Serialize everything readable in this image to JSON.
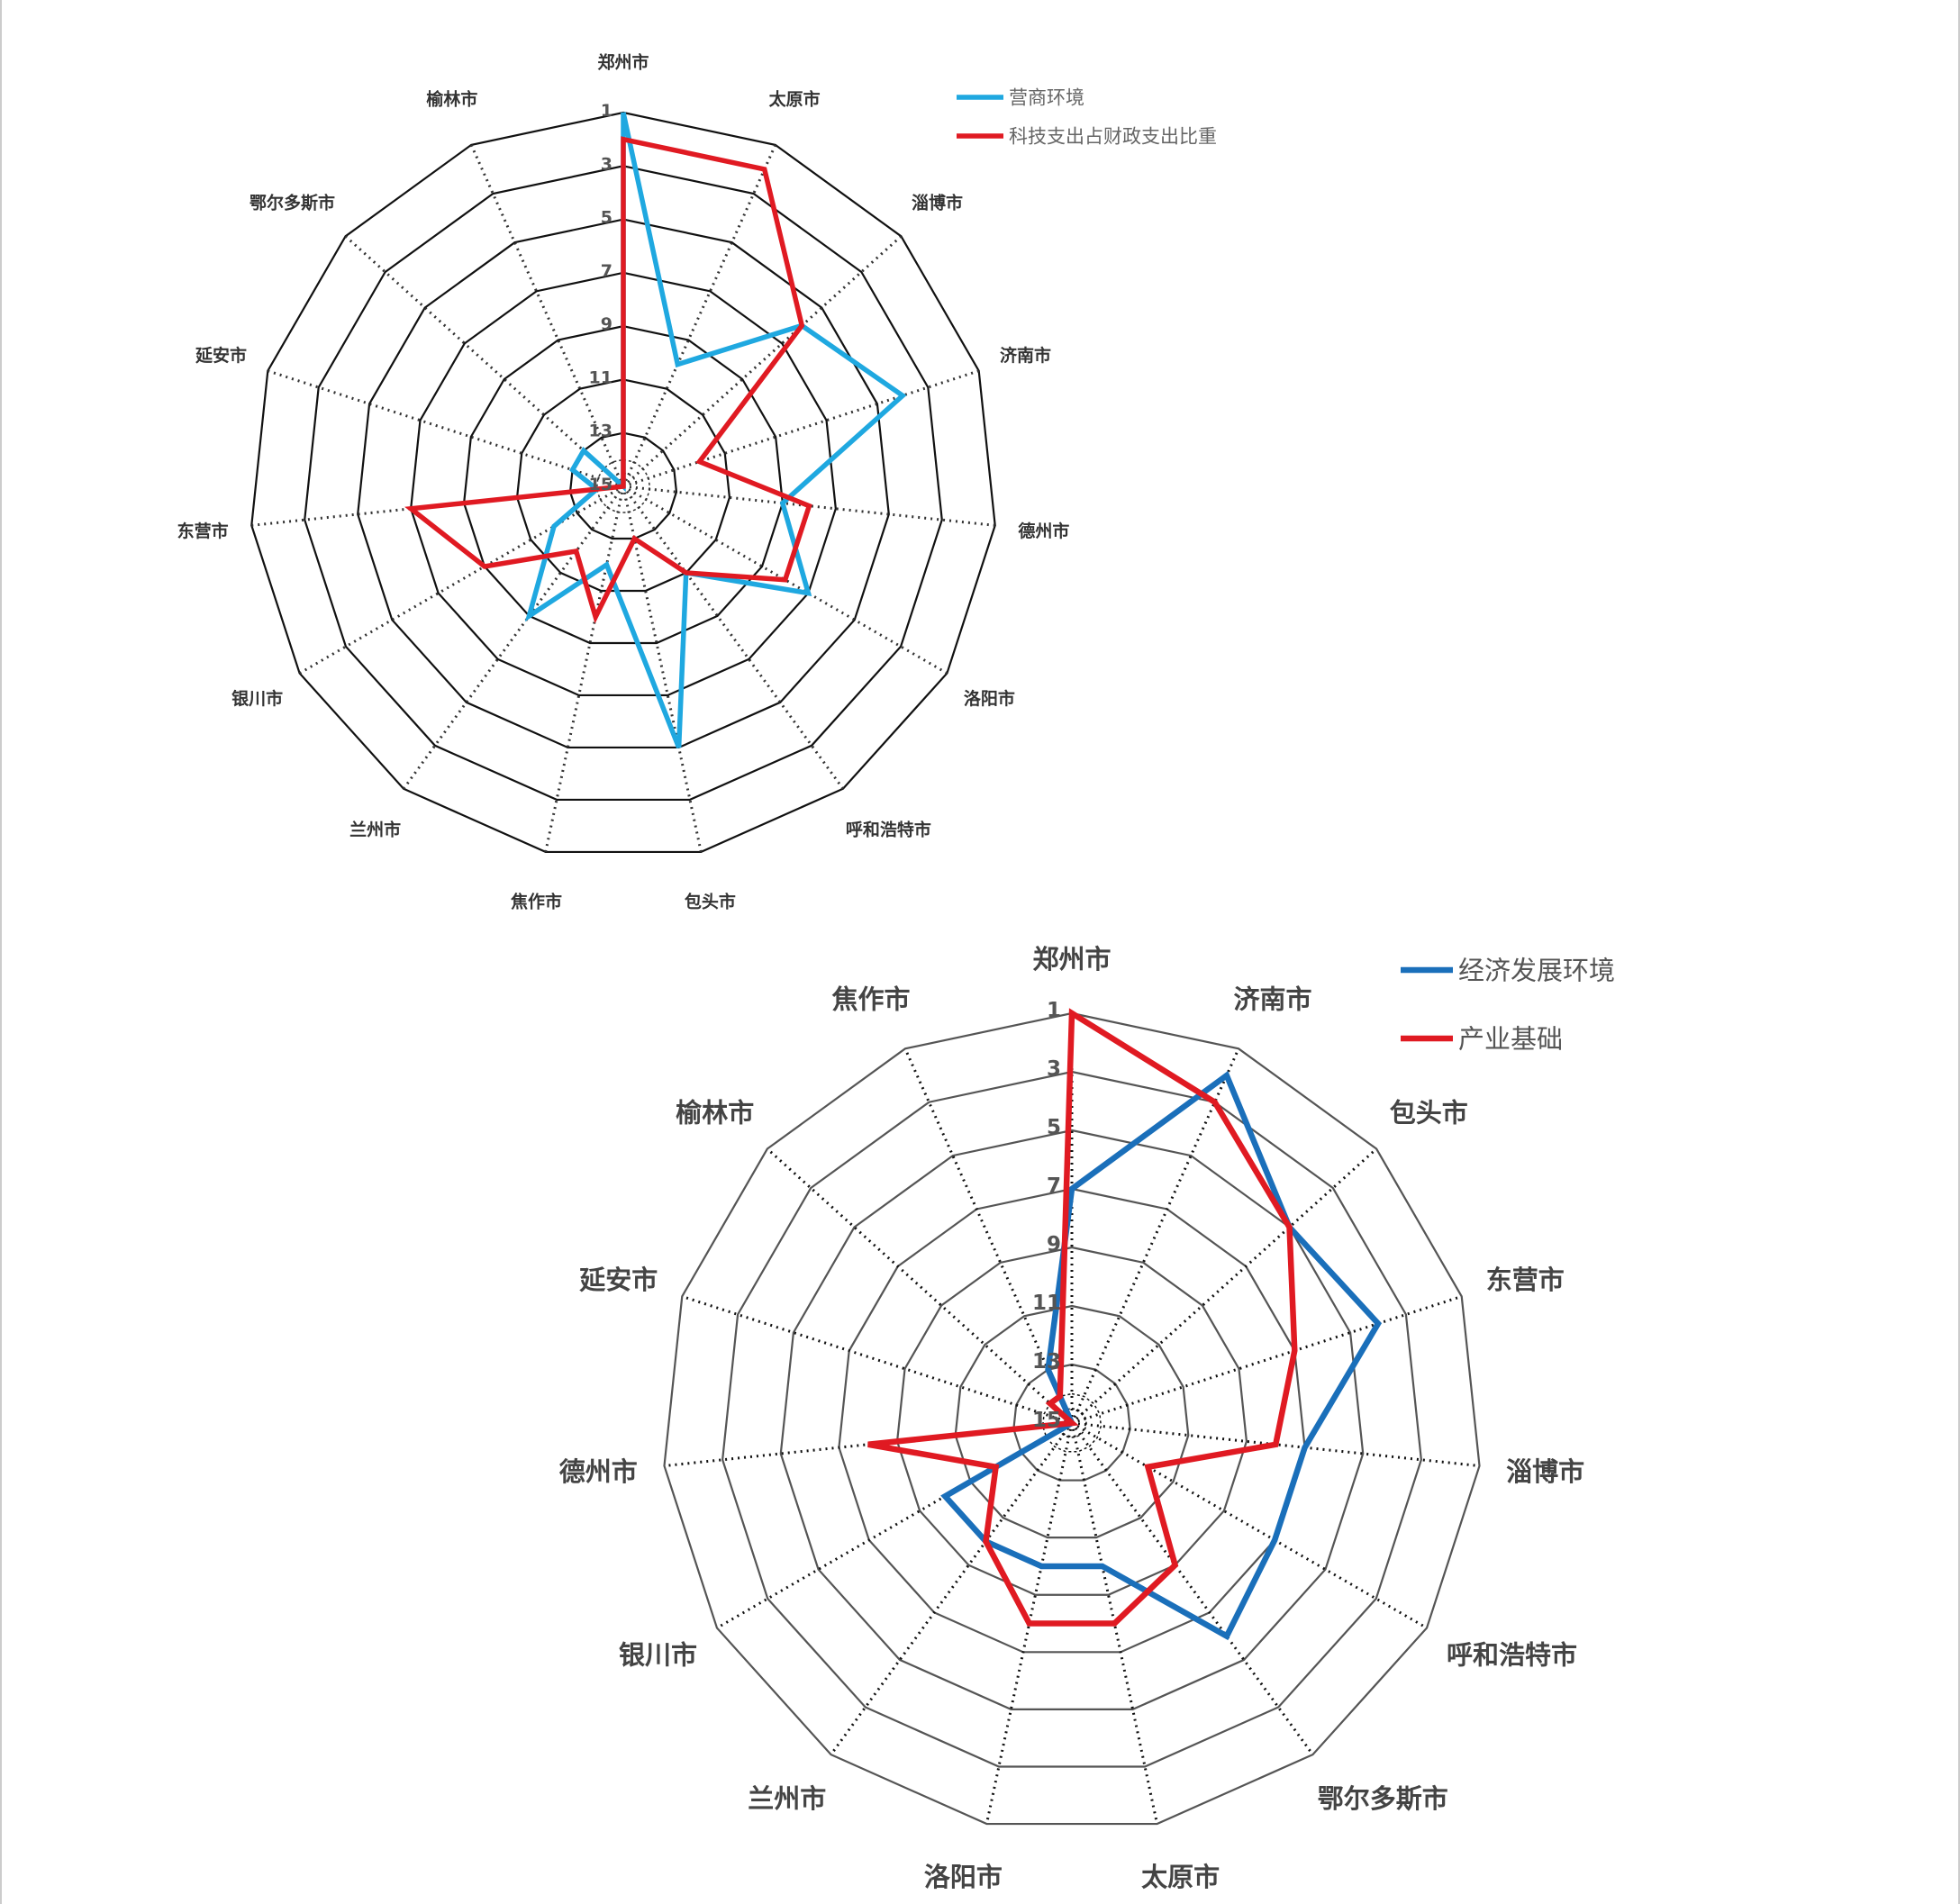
{
  "chart_data": [
    {
      "type": "radar",
      "scale": "reversed-rank",
      "rlim": [
        1,
        15
      ],
      "tick_labels": [
        "1",
        "3",
        "5",
        "7",
        "9",
        "11",
        "13",
        "15"
      ],
      "grid": true,
      "legend_position": "top-right",
      "categories": [
        "郑州市",
        "太原市",
        "淄博市",
        "济南市",
        "德州市",
        "洛阳市",
        "呼和浩特市",
        "包头市",
        "焦作市",
        "兰州市",
        "银川市",
        "东营市",
        "延安市",
        "鄂尔多斯市",
        "榆林市"
      ],
      "series": [
        {
          "name": "营商环境",
          "color": "#1fa8e0",
          "values": [
            1,
            10,
            6,
            4,
            9,
            7,
            11,
            5,
            12,
            9,
            12,
            14,
            13,
            13,
            15
          ]
        },
        {
          "name": "科技支出占财政支出比重",
          "color": "#e01a22",
          "values": [
            2,
            2,
            6,
            12,
            8,
            8,
            11,
            13,
            10,
            12,
            9,
            7,
            15,
            15,
            15
          ]
        }
      ]
    },
    {
      "type": "radar",
      "scale": "reversed-rank",
      "rlim": [
        1,
        15
      ],
      "tick_labels": [
        "1",
        "3",
        "5",
        "7",
        "9",
        "11",
        "13",
        "15"
      ],
      "grid": true,
      "legend_position": "top-right",
      "categories": [
        "郑州市",
        "济南市",
        "包头市",
        "东营市",
        "淄博市",
        "呼和浩特市",
        "鄂尔多斯市",
        "太原市",
        "洛阳市",
        "兰州市",
        "银川市",
        "德州市",
        "延安市",
        "榆林市",
        "焦作市"
      ],
      "series": [
        {
          "name": "经济发展环境",
          "color": "#1a6fba",
          "values": [
            7,
            2,
            5,
            4,
            7,
            7,
            6,
            10,
            10,
            10,
            10,
            15,
            15,
            15,
            13
          ]
        },
        {
          "name": "产业基础",
          "color": "#e01a22",
          "values": [
            1,
            3,
            5,
            7,
            8,
            12,
            9,
            8,
            8,
            10,
            12,
            8,
            15,
            14,
            14
          ]
        }
      ]
    }
  ]
}
